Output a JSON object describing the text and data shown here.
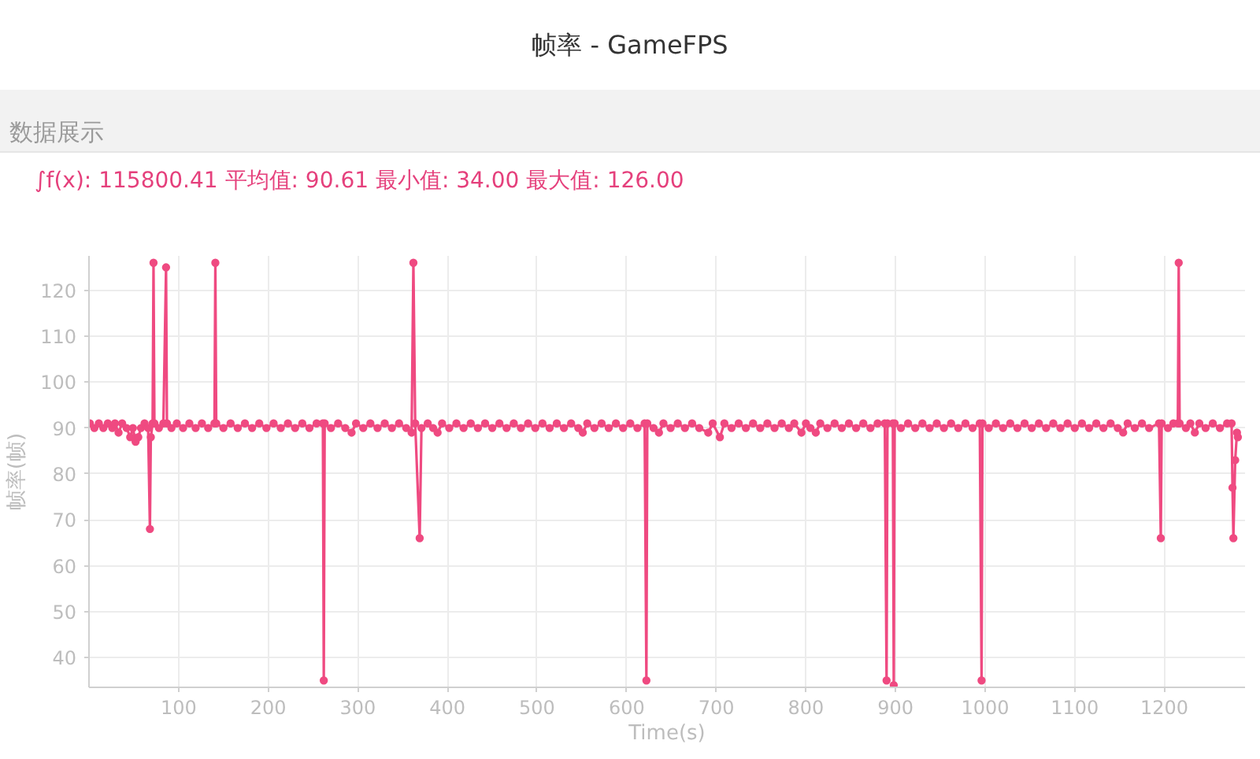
{
  "chart_data": {
    "type": "line",
    "title": "帧率 - GameFPS",
    "subtitle": "数据展示",
    "annotations": [
      "∫f(x): 115800.41 平均值: 90.61 最小值: 34.00 最大值: 126.00"
    ],
    "xlabel": "Time(s)",
    "ylabel": "帧率(帧)",
    "xlim": [
      0,
      1290
    ],
    "ylim": [
      33.5,
      127.5
    ],
    "xticks": [
      100,
      200,
      300,
      400,
      500,
      600,
      700,
      800,
      900,
      1000,
      1100,
      1200
    ],
    "yticks": [
      40,
      50,
      60,
      70,
      80,
      90,
      100,
      110,
      120
    ],
    "grid": true,
    "marker": "circle",
    "line_style": "solid",
    "x": [
      1,
      6,
      11,
      16,
      21,
      26,
      29,
      33,
      37,
      42,
      46,
      49,
      52,
      55,
      58,
      62,
      66,
      68,
      69,
      71,
      72,
      73,
      78,
      83,
      86,
      87,
      92,
      98,
      105,
      112,
      119,
      126,
      133,
      140,
      141,
      142,
      150,
      158,
      166,
      174,
      182,
      190,
      198,
      206,
      214,
      222,
      230,
      238,
      246,
      254,
      261,
      262,
      263,
      270,
      278,
      286,
      293,
      298,
      306,
      314,
      322,
      330,
      338,
      346,
      354,
      360,
      362,
      364,
      369,
      371,
      378,
      384,
      389,
      394,
      402,
      410,
      418,
      426,
      434,
      442,
      450,
      458,
      466,
      474,
      482,
      490,
      498,
      506,
      514,
      522,
      530,
      538,
      546,
      551,
      556,
      564,
      572,
      580,
      588,
      596,
      604,
      612,
      620,
      622,
      623,
      630,
      636,
      641,
      649,
      657,
      665,
      673,
      681,
      691,
      696,
      704,
      709,
      717,
      725,
      733,
      741,
      749,
      757,
      765,
      773,
      781,
      787,
      795,
      800,
      805,
      811,
      816,
      824,
      832,
      840,
      848,
      856,
      864,
      872,
      880,
      888,
      890,
      891,
      897,
      898,
      899,
      906,
      914,
      922,
      930,
      938,
      946,
      954,
      962,
      970,
      978,
      986,
      994,
      996,
      997,
      1004,
      1012,
      1020,
      1028,
      1036,
      1044,
      1052,
      1060,
      1068,
      1076,
      1084,
      1092,
      1100,
      1108,
      1116,
      1124,
      1132,
      1140,
      1148,
      1154,
      1159,
      1167,
      1175,
      1183,
      1194,
      1196,
      1197,
      1204,
      1210,
      1215,
      1216,
      1217,
      1224,
      1229,
      1234,
      1239,
      1246,
      1254,
      1262,
      1270,
      1275,
      1276,
      1277,
      1279,
      1281,
      1282
    ],
    "series": [
      {
        "color": "#ef4a81",
        "values": [
          91,
          90,
          91,
          90,
          91,
          90,
          91,
          89,
          91,
          90,
          88,
          90,
          87,
          88,
          90,
          91,
          90,
          68,
          88,
          91,
          126,
          91,
          90,
          91,
          125,
          91,
          90,
          91,
          90,
          91,
          90,
          91,
          90,
          91,
          126,
          91,
          90,
          91,
          90,
          91,
          90,
          91,
          90,
          91,
          90,
          91,
          90,
          91,
          90,
          91,
          91,
          35,
          91,
          90,
          91,
          90,
          89,
          91,
          90,
          91,
          90,
          91,
          90,
          91,
          90,
          89,
          126,
          91,
          66,
          90,
          91,
          90,
          89,
          91,
          90,
          91,
          90,
          91,
          90,
          91,
          90,
          91,
          90,
          91,
          90,
          91,
          90,
          91,
          90,
          91,
          90,
          91,
          90,
          89,
          91,
          90,
          91,
          90,
          91,
          90,
          91,
          90,
          91,
          35,
          91,
          90,
          89,
          91,
          90,
          91,
          90,
          91,
          90,
          89,
          91,
          88,
          91,
          90,
          91,
          90,
          91,
          90,
          91,
          90,
          91,
          90,
          91,
          89,
          91,
          90,
          89,
          91,
          90,
          91,
          90,
          91,
          90,
          91,
          90,
          91,
          91,
          35,
          91,
          91,
          34,
          91,
          90,
          91,
          90,
          91,
          90,
          91,
          90,
          91,
          90,
          91,
          90,
          91,
          35,
          91,
          90,
          91,
          90,
          91,
          90,
          91,
          90,
          91,
          90,
          91,
          90,
          91,
          90,
          91,
          90,
          91,
          90,
          91,
          90,
          89,
          91,
          90,
          91,
          90,
          91,
          66,
          91,
          90,
          91,
          91,
          126,
          91,
          90,
          91,
          89,
          91,
          90,
          91,
          90,
          91,
          91,
          77,
          66,
          83,
          89,
          88
        ]
      }
    ]
  }
}
